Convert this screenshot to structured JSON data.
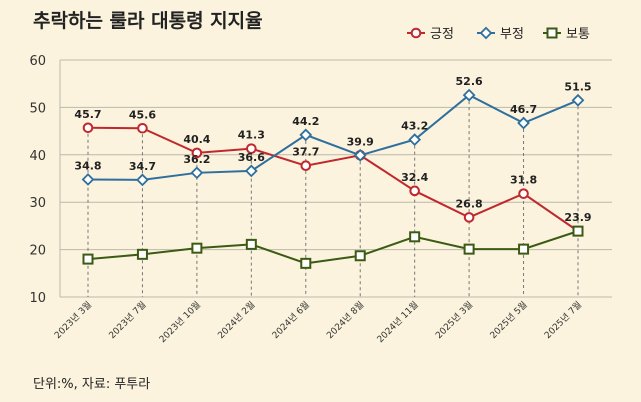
{
  "title": "추락하는 룰라 대통령 지지율",
  "source": "단위:%, 자료: 푸투라",
  "colors": {
    "background": "#fbf3dd",
    "positive": "#c0282d",
    "negative": "#2e6f9e",
    "neutral": "#3b5a14"
  },
  "chart_data": {
    "type": "line",
    "categories": [
      "2023년 3월",
      "2023년 7월",
      "2023년 10월",
      "2024년 2월",
      "2024년 6월",
      "2024년 8월",
      "2024년 11월",
      "2025년 3월",
      "2025년 5월",
      "2025년 7월"
    ],
    "series": [
      {
        "name": "긍정",
        "marker": "circle",
        "color": "#c0282d",
        "values": [
          45.7,
          45.6,
          40.4,
          41.3,
          37.7,
          39.9,
          32.4,
          26.8,
          31.8,
          23.9
        ],
        "labels": [
          "45.7",
          "45.6",
          "40.4",
          "41.3",
          "37.7",
          "",
          "32.4",
          "26.8",
          "31.8",
          "23.9"
        ]
      },
      {
        "name": "부정",
        "marker": "diamond",
        "color": "#2e6f9e",
        "values": [
          34.8,
          34.7,
          36.2,
          36.6,
          44.2,
          39.9,
          43.2,
          52.6,
          46.7,
          51.5
        ],
        "labels": [
          "34.8",
          "34.7",
          "36.2",
          "36.6",
          "44.2",
          "39.9",
          "43.2",
          "52.6",
          "46.7",
          "51.5"
        ]
      },
      {
        "name": "보통",
        "marker": "square",
        "color": "#3b5a14",
        "values": [
          18.0,
          19.0,
          20.3,
          21.1,
          17.1,
          18.7,
          22.7,
          20.1,
          20.1,
          23.9
        ],
        "labels": []
      }
    ],
    "ylim": [
      10,
      60
    ],
    "yticks": [
      10,
      20,
      30,
      40,
      50,
      60
    ],
    "grid": "vertical-dashed",
    "legend": "top-right"
  }
}
